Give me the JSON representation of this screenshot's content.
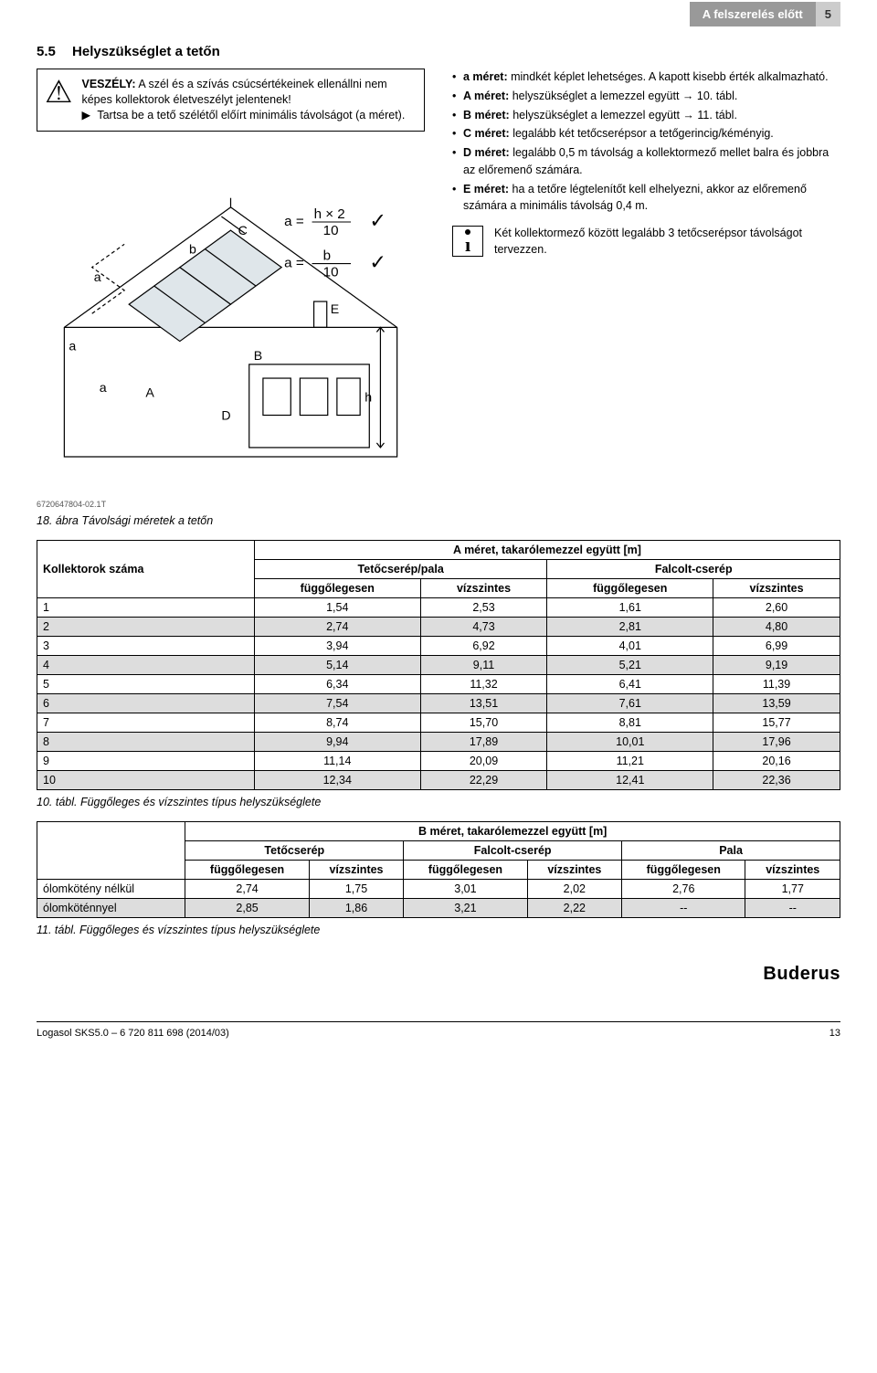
{
  "header": {
    "section_title": "A felszerelés előtt",
    "section_number": "5"
  },
  "section": {
    "num": "5.5",
    "title": "Helyszükséglet a tetőn"
  },
  "warning": {
    "label": "VESZÉLY:",
    "text1": "A szél és a szívás csúcsértékeinek ellenállni nem képes kollektorok életveszélyt jelentenek!",
    "text2": "Tartsa be a tető szélétől előírt minimális távolságot (a méret)."
  },
  "formulas": {
    "f1_lhs": "a =",
    "f1_num": "h × 2",
    "f1_den": "10",
    "f2_lhs": "a =",
    "f2_num": "b",
    "f2_den": "10"
  },
  "diagram_labels": {
    "a": "a",
    "b": "b",
    "A": "A",
    "B": "B",
    "C": "C",
    "D": "D",
    "E": "E",
    "h": "h"
  },
  "bullets": [
    {
      "bold": "a méret:",
      "rest": " mindkét képlet lehetséges. A kapott kisebb érték alkalmazható."
    },
    {
      "bold": "A méret:",
      "rest": " helyszükséglet a lemezzel együtt → 10. tábl."
    },
    {
      "bold": "B méret:",
      "rest": " helyszükséglet a lemezzel együtt → 11. tábl."
    },
    {
      "bold": "C méret:",
      "rest": " legalább két tetőcserépsor a tetőgerincig/kéményig."
    },
    {
      "bold": "D méret:",
      "rest": " legalább 0,5 m távolság a kollektormező mellet balra és jobbra az előremenő számára."
    },
    {
      "bold": "E méret:",
      "rest": " ha a tetőre légtelenítőt kell elhelyezni, akkor az előremenő számára a minimális távolság 0,4 m."
    }
  ],
  "info": "Két kollektormező között legalább 3 tetőcserépsor távolságot tervezzen.",
  "fig_id": "6720647804-02.1T",
  "fig_caption": "18. ábra  Távolsági méretek a tetőn",
  "table1": {
    "title": "A méret, takarólemezzel együtt [m]",
    "group1": "Tetőcserép/pala",
    "group2": "Falcolt-cserép",
    "rowhead": "Kollektorok száma",
    "sub": [
      "függőlegesen",
      "vízszintes",
      "függőlegesen",
      "vízszintes"
    ],
    "rows": [
      [
        "1",
        "1,54",
        "2,53",
        "1,61",
        "2,60"
      ],
      [
        "2",
        "2,74",
        "4,73",
        "2,81",
        "4,80"
      ],
      [
        "3",
        "3,94",
        "6,92",
        "4,01",
        "6,99"
      ],
      [
        "4",
        "5,14",
        "9,11",
        "5,21",
        "9,19"
      ],
      [
        "5",
        "6,34",
        "11,32",
        "6,41",
        "11,39"
      ],
      [
        "6",
        "7,54",
        "13,51",
        "7,61",
        "13,59"
      ],
      [
        "7",
        "8,74",
        "15,70",
        "8,81",
        "15,77"
      ],
      [
        "8",
        "9,94",
        "17,89",
        "10,01",
        "17,96"
      ],
      [
        "9",
        "11,14",
        "20,09",
        "11,21",
        "20,16"
      ],
      [
        "10",
        "12,34",
        "22,29",
        "12,41",
        "22,36"
      ]
    ],
    "caption": "10. tábl.  Függőleges és vízszintes típus helyszükséglete"
  },
  "table2": {
    "title": "B méret, takarólemezzel együtt [m]",
    "groups": [
      "Tetőcserép",
      "Falcolt-cserép",
      "Pala"
    ],
    "sub": [
      "függőlegesen",
      "vízszintes",
      "függőlegesen",
      "vízszintes",
      "függőlegesen",
      "vízszintes"
    ],
    "rows": [
      [
        "ólomkötény nélkül",
        "2,74",
        "1,75",
        "3,01",
        "2,02",
        "2,76",
        "1,77"
      ],
      [
        "ólomköténnyel",
        "2,85",
        "1,86",
        "3,21",
        "2,22",
        "--",
        "--"
      ]
    ],
    "caption": "11. tábl.  Függőleges és vízszintes típus helyszükséglete"
  },
  "footer": {
    "doc": "Logasol SKS5.0 – 6 720 811 698 (2014/03)",
    "brand": "Buderus",
    "page": "13"
  }
}
